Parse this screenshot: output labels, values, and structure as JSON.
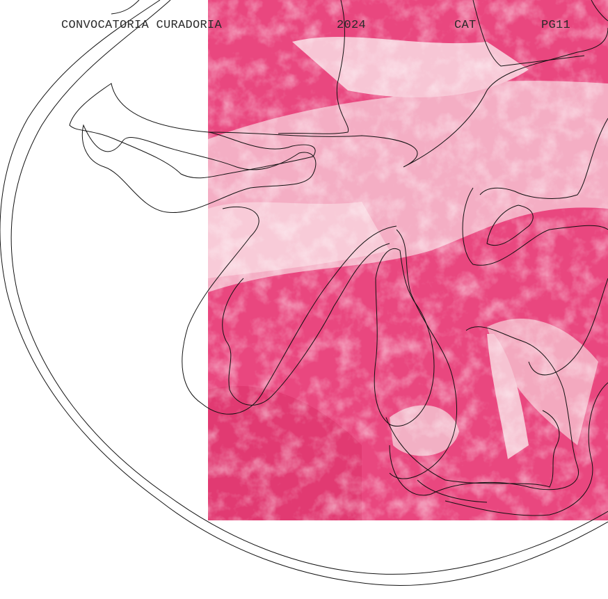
{
  "header": {
    "title": "CONVOCATORIA CURADORIA",
    "year": "2024",
    "language": "CAT",
    "page": "PG11"
  }
}
